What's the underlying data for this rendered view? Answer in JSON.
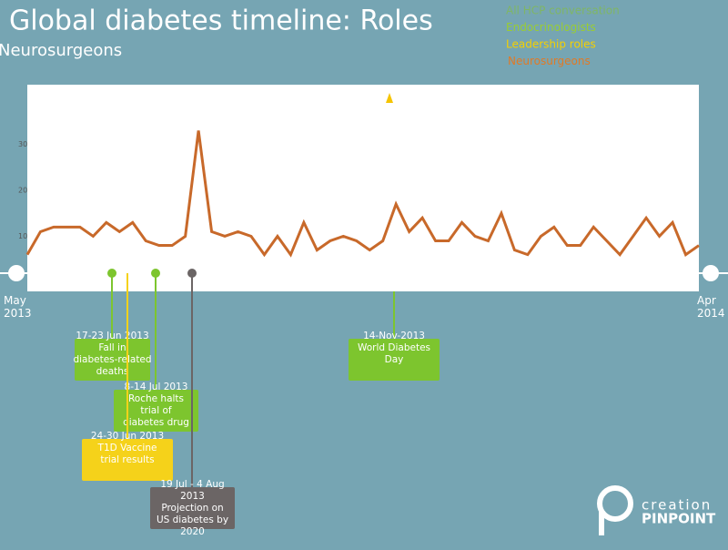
{
  "chart_data": {
    "type": "line",
    "title": "Global diabetes timeline: Roles",
    "subtitle": "Neurosurgeons",
    "legend": [
      {
        "name": "All HCP conversation",
        "color": "#86c232"
      },
      {
        "name": "Endocrinologists",
        "color": "#9acd32"
      },
      {
        "name": "Leadership roles",
        "color": "#f5d000"
      },
      {
        "name": "Neurosurgeons",
        "color": "#e07a26"
      }
    ],
    "categories": [
      "May 2013",
      null,
      null,
      null,
      null,
      null,
      null,
      null,
      null,
      null,
      null,
      null,
      null,
      null,
      null,
      null,
      null,
      null,
      null,
      null,
      null,
      null,
      null,
      null,
      null,
      null,
      null,
      null,
      null,
      null,
      null,
      null,
      null,
      null,
      null,
      null,
      null,
      null,
      null,
      null,
      null,
      null,
      null,
      null,
      null,
      null,
      null,
      null,
      null,
      null,
      null,
      "Apr 2014"
    ],
    "series": [
      {
        "name": "Neurosurgeons",
        "color": "#c8692a",
        "values": [
          6,
          11,
          12,
          12,
          12,
          10,
          13,
          11,
          13,
          9,
          8,
          8,
          10,
          33,
          11,
          10,
          11,
          10,
          6,
          10,
          6,
          13,
          7,
          9,
          10,
          9,
          7,
          9,
          17,
          11,
          14,
          9,
          9,
          13,
          10,
          9,
          15,
          7,
          6,
          10,
          12,
          8,
          8,
          12,
          9,
          6,
          10,
          14,
          10,
          13,
          6,
          8
        ]
      }
    ],
    "ylim": [
      -2,
      43
    ],
    "yticks": [
      10,
      20,
      30
    ],
    "events": [
      {
        "date": "17-23 Jun 2013",
        "text": "Fall in diabetes-related deaths",
        "color": "#7dc52e"
      },
      {
        "date": "8-14 Jul 2013",
        "text": "Roche halts trial of diabetes drug",
        "color": "#7dc52e"
      },
      {
        "date": "24-30 Jun 2013",
        "text": "T1D Vaccine trial results",
        "color": "#f5d21a"
      },
      {
        "date": "19 Jul - 4 Aug 2013",
        "text": "Projection on US diabetes by 2020",
        "color": "#6b6565"
      },
      {
        "date": "14-Nov-2013",
        "text": "World Diabetes Day",
        "color": "#7dc52e"
      }
    ],
    "logo": {
      "top": "creation",
      "bottom": "PINPOINT"
    }
  }
}
